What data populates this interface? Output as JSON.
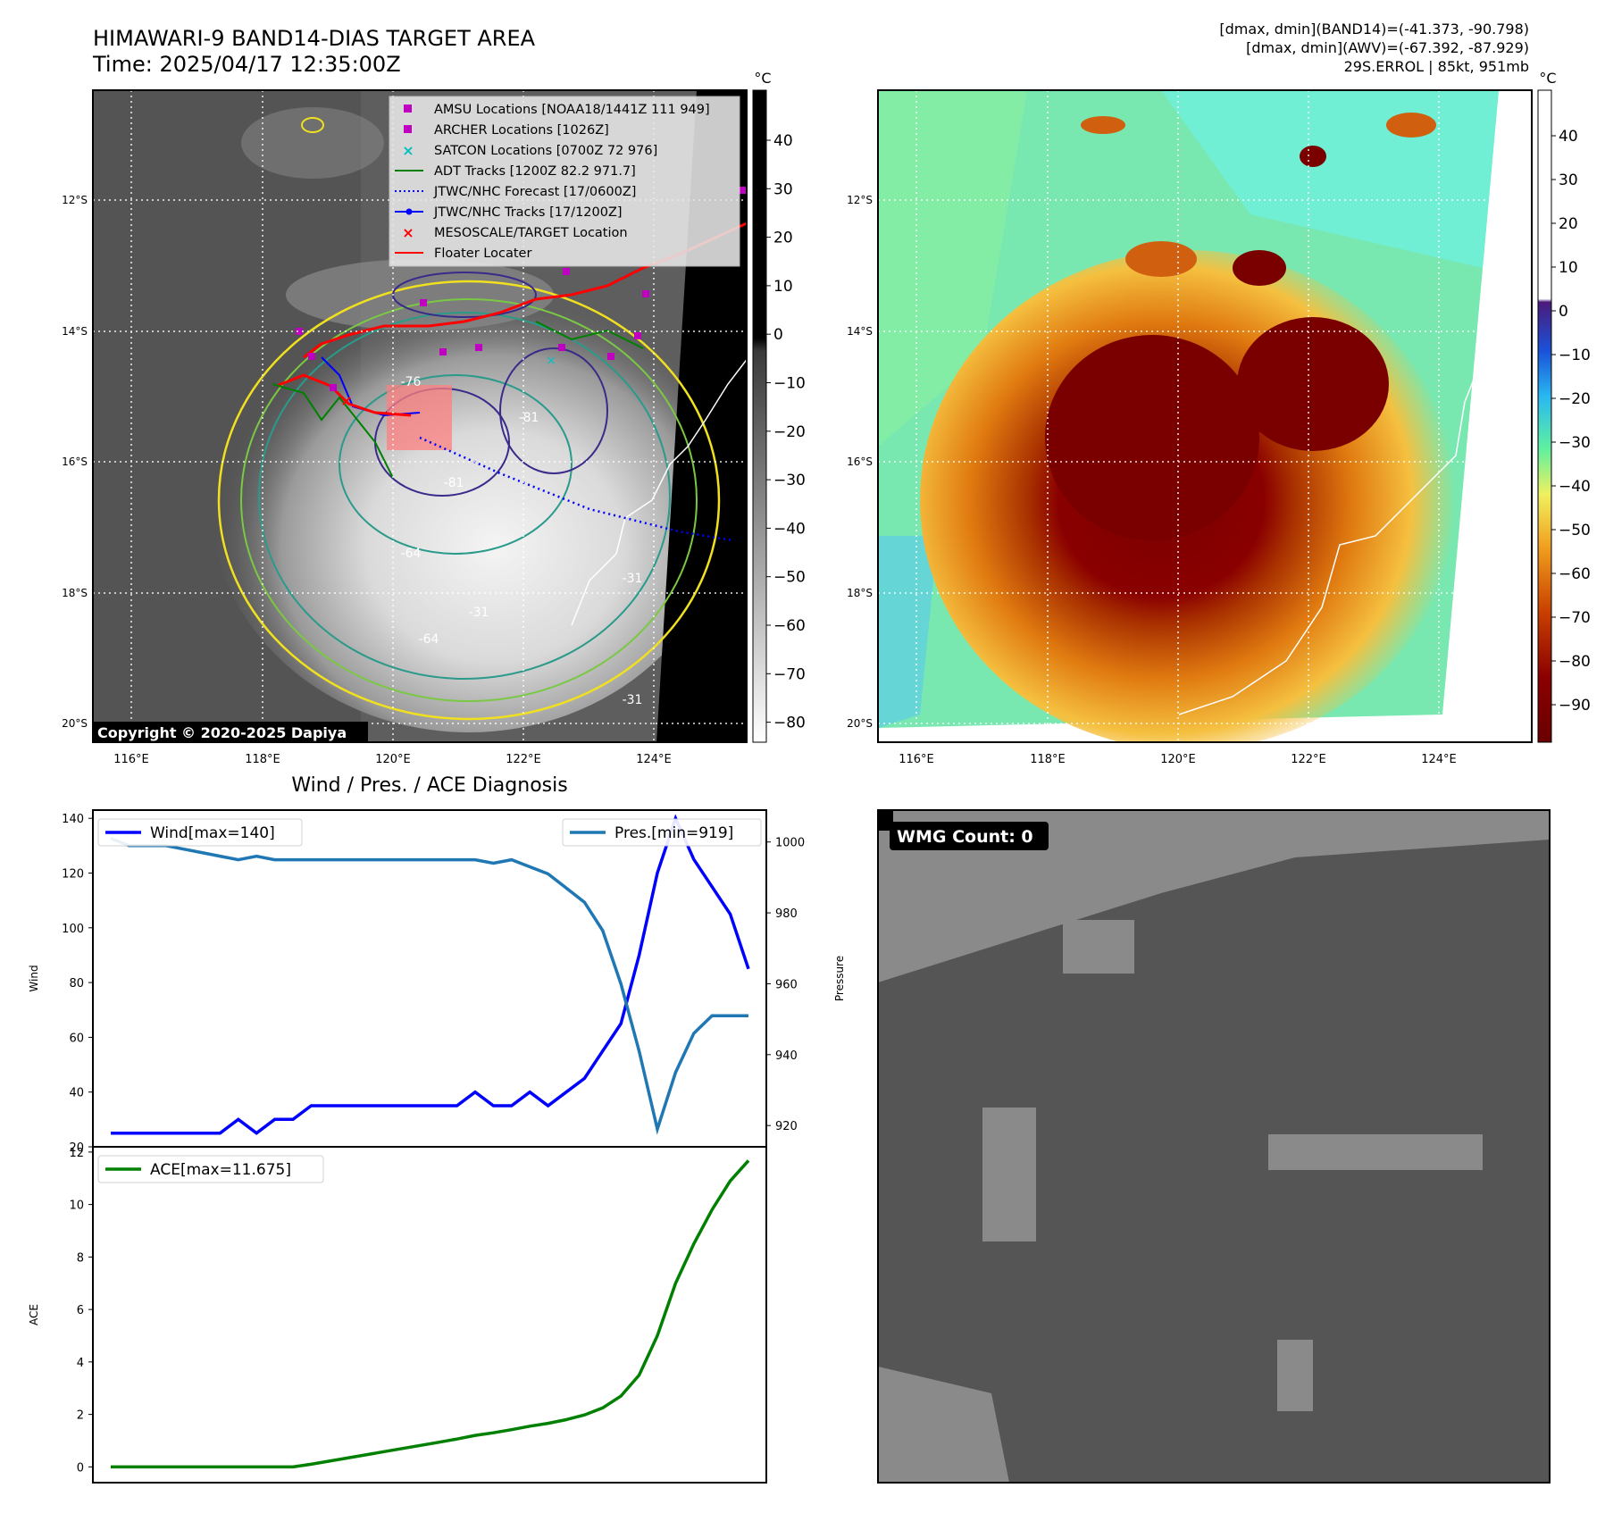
{
  "header": {
    "title_line1": "HIMAWARI-9 BAND14-DIAS TARGET AREA",
    "title_line2": "Time: 2025/04/17 12:35:00Z",
    "info_line1": "[dmax, dmin](BAND14)=(-41.373, -90.798)",
    "info_line2": "[dmax, dmin](AWV)=(-67.392, -87.929)",
    "info_line3": "29S.ERROL | 85kt, 951mb"
  },
  "map": {
    "lat_labels": [
      "12°S",
      "14°S",
      "16°S",
      "18°S",
      "20°S"
    ],
    "lon_labels": [
      "116°E",
      "118°E",
      "120°E",
      "122°E",
      "124°E"
    ],
    "copyright": "Copyright © 2020-2025 Dapiya",
    "contour_labels": [
      "-76",
      "-81",
      "-81",
      "-64",
      "-31",
      "-31",
      "-31",
      "-64"
    ],
    "colorbar_unit": "°C"
  },
  "colorbar_gray": {
    "unit": "°C",
    "ticks": [
      "40",
      "30",
      "20",
      "10",
      "0",
      "−10",
      "−20",
      "−30",
      "−40",
      "−50",
      "−60",
      "−70",
      "−80"
    ]
  },
  "colorbar_awv": {
    "unit": "°C",
    "ticks": [
      "40",
      "30",
      "20",
      "10",
      "0",
      "−10",
      "−20",
      "−30",
      "−40",
      "−50",
      "−60",
      "−70",
      "−80",
      "−90"
    ]
  },
  "legend": [
    {
      "label": "AMSU Locations [NOAA18/1441Z 111 949]",
      "color": "#c000c0",
      "marker": "square"
    },
    {
      "label": "ARCHER Locations [1026Z]",
      "color": "#c000c0",
      "marker": "square"
    },
    {
      "label": "SATCON Locations [0700Z 72 976]",
      "color": "#00c0c0",
      "marker": "x"
    },
    {
      "label": "ADT Tracks [1200Z 82.2 971.7]",
      "color": "#008000",
      "marker": "line"
    },
    {
      "label": "JTWC/NHC Forecast [17/0600Z]",
      "color": "#0000ff",
      "marker": "dotted"
    },
    {
      "label": "JTWC/NHC Tracks [17/1200Z]",
      "color": "#0000ff",
      "marker": "line-dot"
    },
    {
      "label": "MESOSCALE/TARGET Location",
      "color": "#ff0000",
      "marker": "x"
    },
    {
      "label": "Floater Locater",
      "color": "#ff0000",
      "marker": "line"
    }
  ],
  "chart_data": [
    {
      "type": "line",
      "title": "Wind / Pres. / ACE Diagnosis",
      "ylabel": "Wind",
      "ylabel_right": "Pressure",
      "ylim": [
        20,
        143
      ],
      "ylim_right": [
        914,
        1009
      ],
      "yticks": [
        20,
        40,
        60,
        80,
        100,
        120,
        140
      ],
      "yticks_right": [
        920,
        940,
        960,
        980,
        1000
      ],
      "series": [
        {
          "name": "Wind[max=140]",
          "axis": "left",
          "color": "#0000ff",
          "values": [
            25,
            25,
            25,
            25,
            25,
            25,
            25,
            30,
            25,
            30,
            30,
            35,
            35,
            35,
            35,
            35,
            35,
            35,
            35,
            35,
            40,
            35,
            35,
            40,
            35,
            40,
            45,
            55,
            65,
            90,
            120,
            140,
            125,
            115,
            105,
            85
          ]
        },
        {
          "name": "Pres.[min=919]",
          "axis": "right",
          "color": "#1f77b4",
          "values": [
            1001,
            999,
            999,
            999,
            998,
            997,
            996,
            995,
            996,
            995,
            995,
            995,
            995,
            995,
            995,
            995,
            995,
            995,
            995,
            995,
            995,
            994,
            995,
            993,
            991,
            987,
            983,
            975,
            960,
            941,
            919,
            935,
            946,
            951,
            951,
            951
          ]
        }
      ]
    },
    {
      "type": "line",
      "ylabel": "ACE",
      "ylim": [
        -0.6,
        12.2
      ],
      "yticks": [
        0,
        2,
        4,
        6,
        8,
        10,
        12
      ],
      "series": [
        {
          "name": "ACE[max=11.675]",
          "color": "#008000",
          "values": [
            0,
            0,
            0,
            0,
            0,
            0,
            0,
            0,
            0,
            0,
            0,
            0.1,
            0.22,
            0.34,
            0.46,
            0.58,
            0.7,
            0.82,
            0.94,
            1.06,
            1.2,
            1.3,
            1.42,
            1.55,
            1.66,
            1.8,
            1.98,
            2.25,
            2.7,
            3.5,
            5.0,
            7.0,
            8.5,
            9.8,
            10.9,
            11.675
          ]
        }
      ]
    }
  ],
  "wmg_panel": {
    "label": "WMG Count: 0"
  }
}
